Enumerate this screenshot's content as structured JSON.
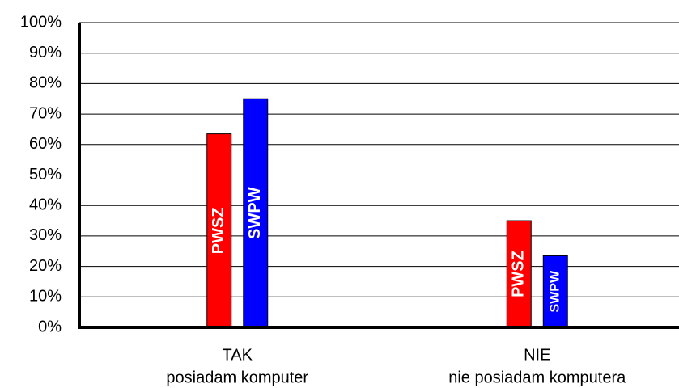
{
  "chart_data": {
    "type": "bar",
    "categories": [
      [
        "TAK",
        "posiadam komputer"
      ],
      [
        "NIE",
        "nie posiadam komputera"
      ]
    ],
    "series": [
      {
        "name": "PWSZ",
        "color": "#ff0000",
        "values": [
          63.5,
          35
        ]
      },
      {
        "name": "SWPW",
        "color": "#0000ff",
        "values": [
          75,
          23.5
        ]
      }
    ],
    "ylim": [
      0,
      100
    ],
    "yticks": [
      {
        "value": 0,
        "label": "0%"
      },
      {
        "value": 10,
        "label": "10%"
      },
      {
        "value": 20,
        "label": "20%"
      },
      {
        "value": 30,
        "label": "30%"
      },
      {
        "value": 40,
        "label": "40%"
      },
      {
        "value": 50,
        "label": "50%"
      },
      {
        "value": 60,
        "label": "60%"
      },
      {
        "value": 70,
        "label": "70%"
      },
      {
        "value": 80,
        "label": "80%"
      },
      {
        "value": 90,
        "label": "90%"
      },
      {
        "value": 100,
        "label": "100%"
      }
    ],
    "grid": true
  }
}
